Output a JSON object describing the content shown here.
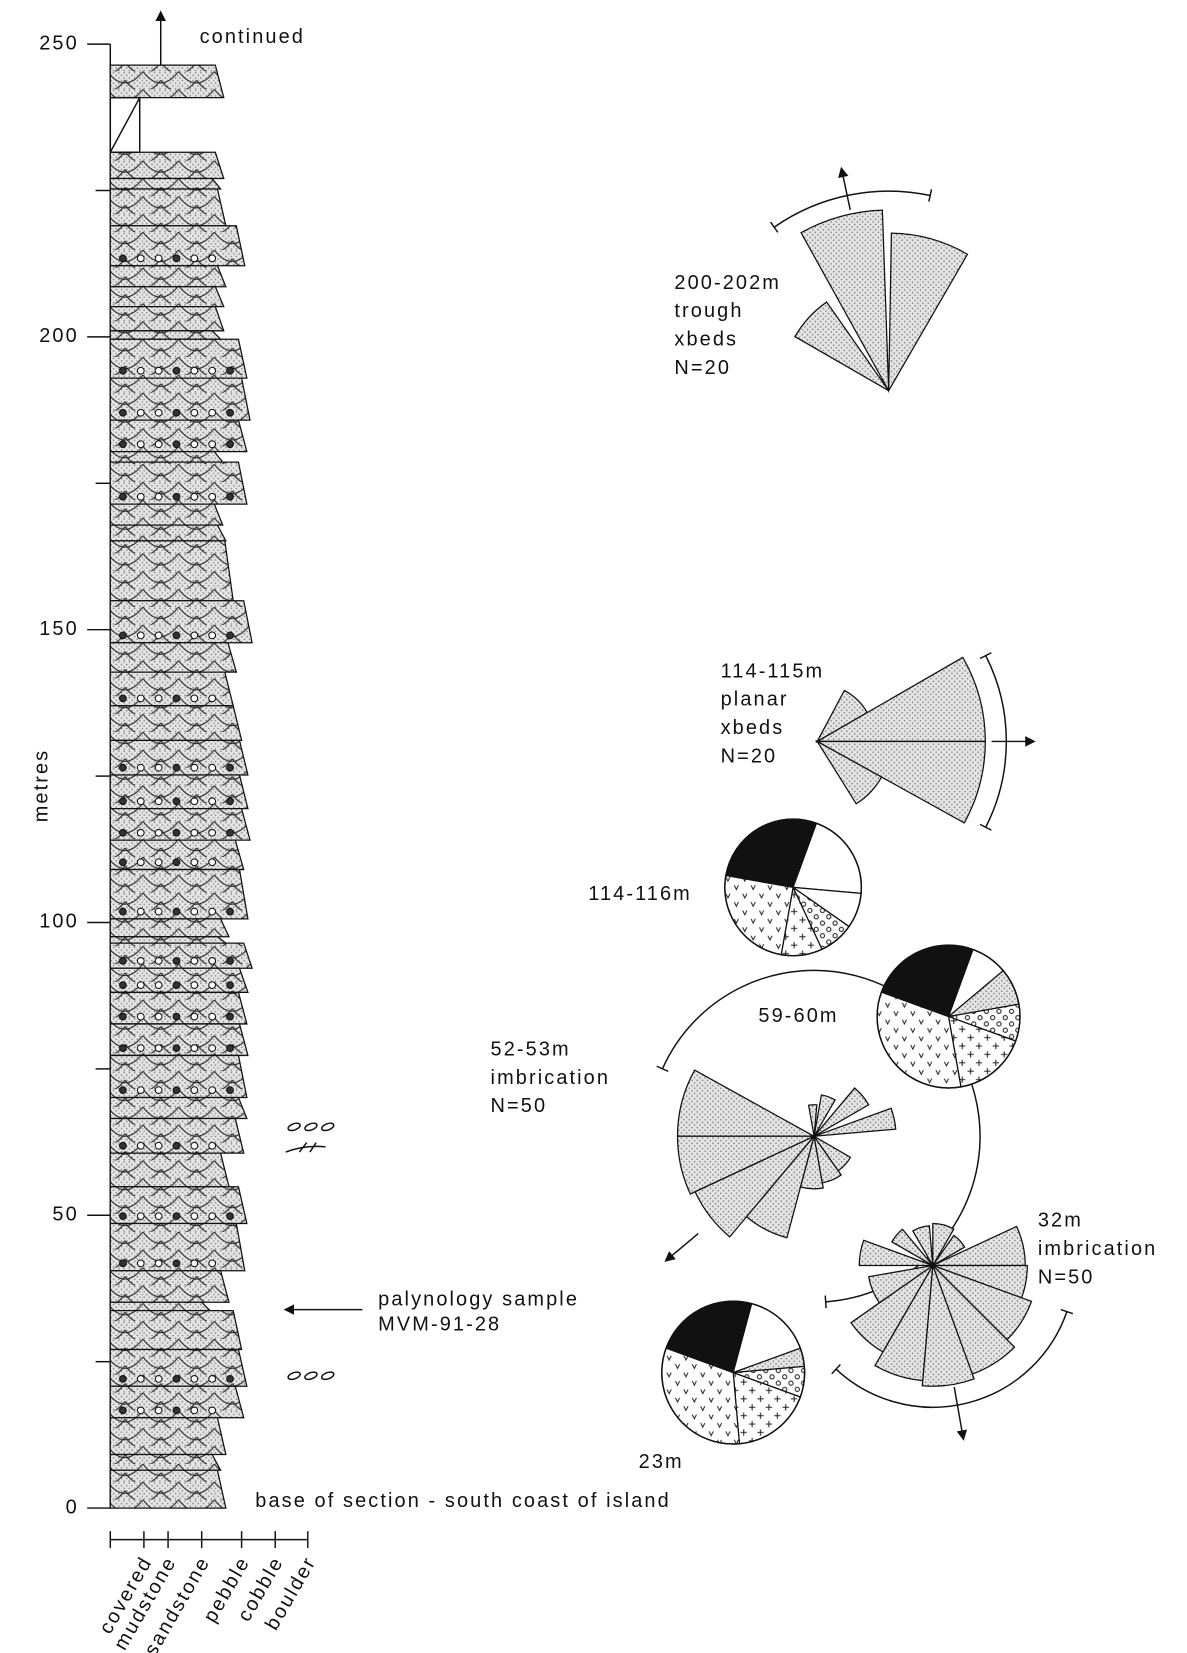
{
  "depth_axis": {
    "label": "metres",
    "ticks": [
      0,
      50,
      100,
      150,
      200,
      250
    ]
  },
  "annotations": {
    "continued": "continued",
    "base": "base of section - south coast of island",
    "palynology": [
      "palynology sample",
      "MVM-91-28"
    ]
  },
  "grain_size_scale": [
    "covered",
    "mudstone",
    "sandstone",
    "pebble",
    "cobble",
    "boulder"
  ],
  "rose_diagrams": [
    {
      "interval": "200-202m",
      "lines": [
        "trough",
        "xbeds"
      ],
      "n": "N=20"
    },
    {
      "interval": "114-115m",
      "lines": [
        "planar",
        "xbeds"
      ],
      "n": "N=20"
    },
    {
      "interval": "52-53m",
      "lines": [
        "imbrication"
      ],
      "n": "N=50"
    },
    {
      "interval": "32m",
      "lines": [
        "imbrication"
      ],
      "n": "N=50"
    }
  ],
  "pie_charts": [
    {
      "label": "114-116m"
    },
    {
      "label": "59-60m"
    },
    {
      "label": "23m"
    }
  ]
}
